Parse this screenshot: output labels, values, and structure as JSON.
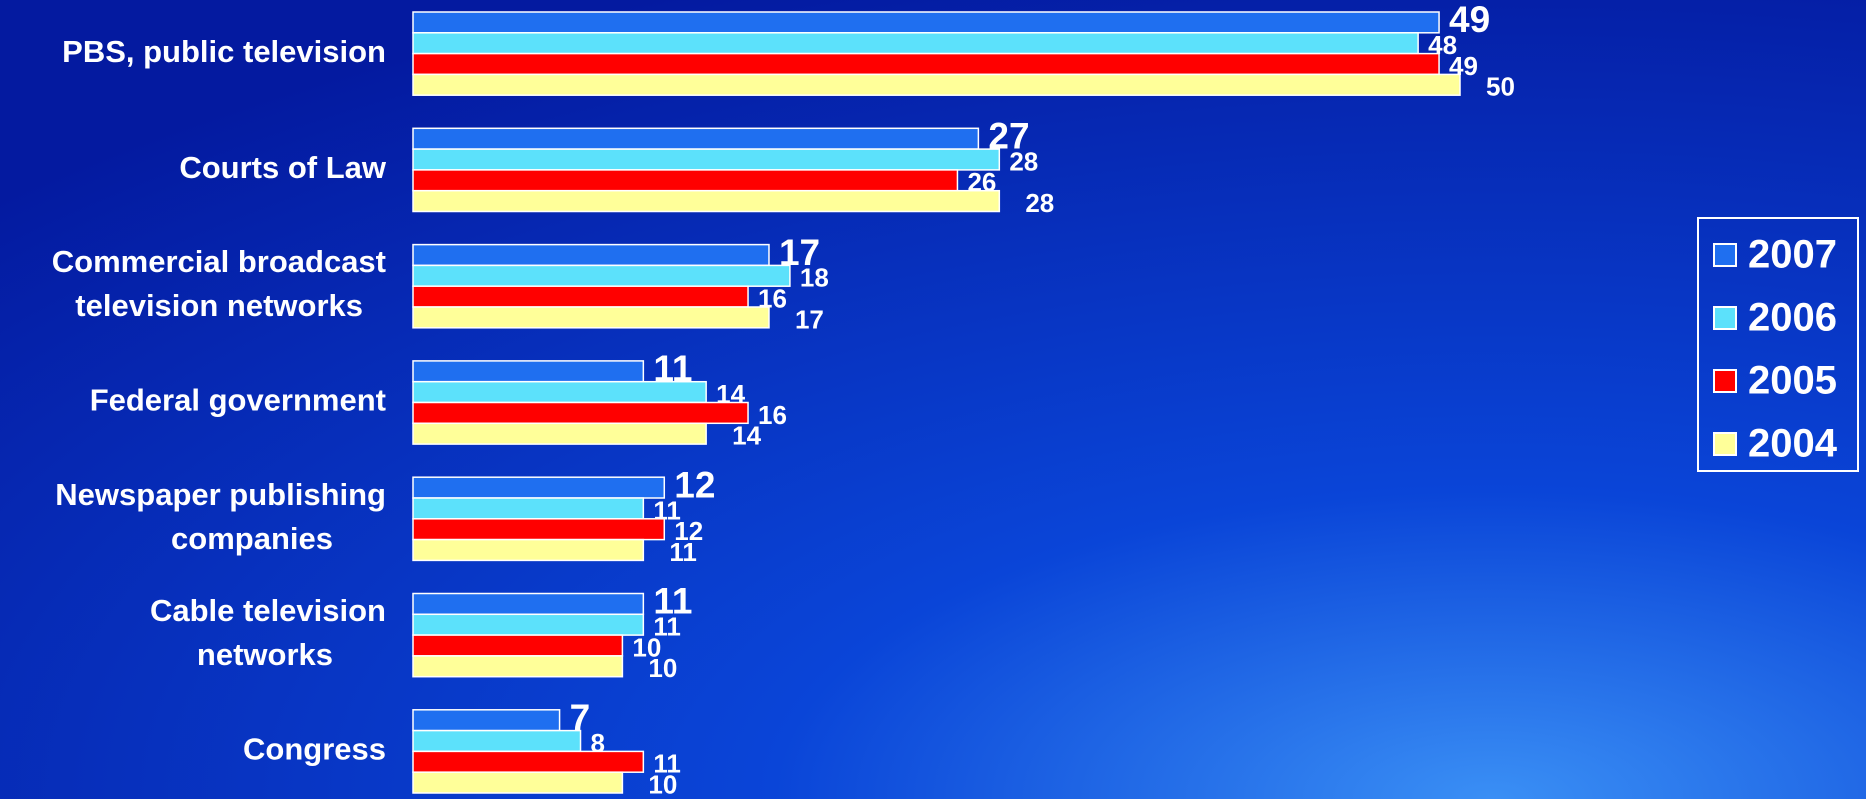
{
  "chart_data": {
    "type": "hbar",
    "categories": [
      "PBS, public television",
      "Courts of Law",
      "Commercial broadcast\ntelevision networks",
      "Federal government",
      "Newspaper publishing\ncompanies",
      "Cable television\nnetworks",
      "Congress"
    ],
    "series": [
      {
        "name": "2007",
        "color": "#1f6ff0",
        "values": [
          49,
          27,
          17,
          11,
          12,
          11,
          7
        ]
      },
      {
        "name": "2006",
        "color": "#5ce1fb",
        "values": [
          48,
          28,
          18,
          14,
          11,
          11,
          8
        ]
      },
      {
        "name": "2005",
        "color": "#ff0000",
        "values": [
          49,
          26,
          16,
          16,
          12,
          10,
          11
        ]
      },
      {
        "name": "2004",
        "color": "#ffff99",
        "values": [
          50,
          28,
          17,
          14,
          11,
          10,
          10
        ]
      }
    ],
    "xlim": [
      0,
      50
    ],
    "legend": "right"
  }
}
